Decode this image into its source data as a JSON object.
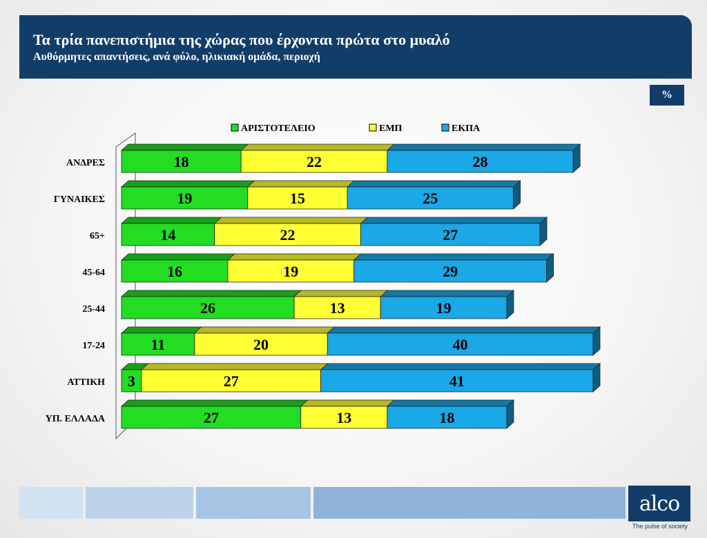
{
  "header": {
    "title": "Τα τρία πανεπιστήμια της χώρας που έρχονται πρώτα στο μυαλό",
    "subtitle": "Αυθόρμητες απαντήσεις, ανά φύλο, ηλικιακή ομάδα, περιοχή"
  },
  "unit_badge": "%",
  "brand": {
    "logo_text": "alco",
    "tagline": "The pulse of society"
  },
  "chart_data": {
    "type": "bar",
    "orientation": "horizontal",
    "stacked": true,
    "categories": [
      "ΑΝΔΡΕΣ",
      "ΓΥΝΑΙΚΕΣ",
      "65+",
      "45-64",
      "25-44",
      "17-24",
      "ΑΤΤΙΚΗ",
      "ΥΠ. ΕΛΛΑΔΑ"
    ],
    "series": [
      {
        "name": "ΑΡΙΣΤΟΤΕΛΕΙΟ",
        "color": "#22dd22",
        "values": [
          18,
          19,
          14,
          16,
          26,
          11,
          3,
          27
        ]
      },
      {
        "name": "ΕΜΠ",
        "color": "#ffff33",
        "values": [
          22,
          15,
          22,
          19,
          13,
          20,
          27,
          13
        ]
      },
      {
        "name": "ΕΚΠΑ",
        "color": "#1aa8e6",
        "values": [
          28,
          25,
          27,
          29,
          19,
          40,
          41,
          18
        ]
      }
    ],
    "legend_position": "top",
    "grid": false,
    "data_labels": true
  }
}
